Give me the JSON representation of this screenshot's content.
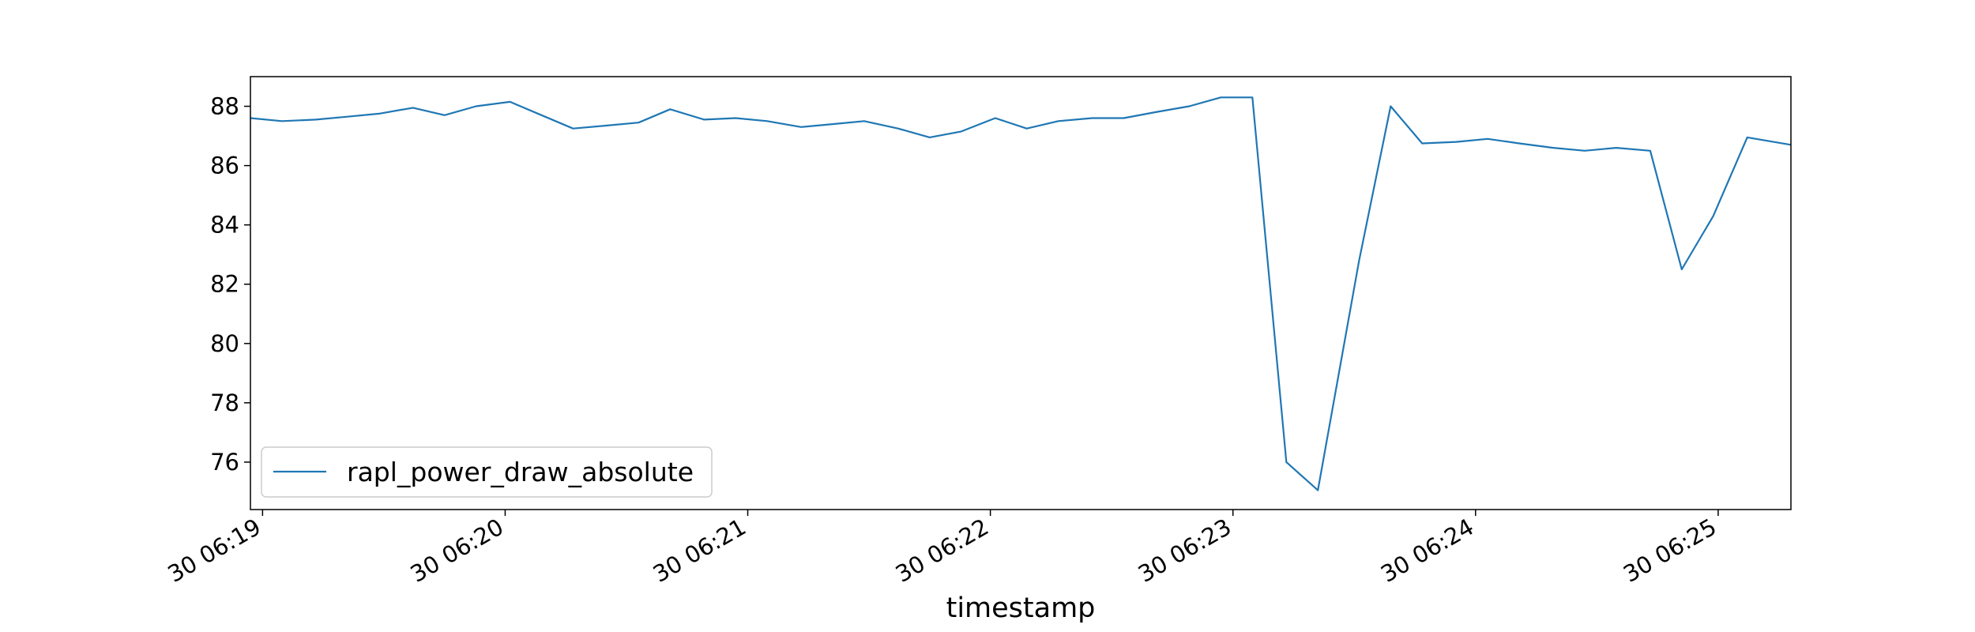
{
  "chart_data": {
    "type": "line",
    "title": "",
    "xlabel": "timestamp",
    "ylabel": "",
    "x_unit": "minutes after 30 06:19",
    "xlim": [
      -0.05,
      6.3
    ],
    "ylim": [
      74.4,
      89.0
    ],
    "xticks": [
      {
        "value": 0,
        "label": "30 06:19"
      },
      {
        "value": 1,
        "label": "30 06:20"
      },
      {
        "value": 2,
        "label": "30 06:21"
      },
      {
        "value": 3,
        "label": "30 06:22"
      },
      {
        "value": 4,
        "label": "30 06:23"
      },
      {
        "value": 5,
        "label": "30 06:24"
      },
      {
        "value": 6,
        "label": "30 06:25"
      }
    ],
    "yticks": [
      76,
      78,
      80,
      82,
      84,
      86,
      88
    ],
    "legend": {
      "position": "lower-left"
    },
    "series": [
      {
        "name": "rapl_power_draw_absolute",
        "color": "#1f77b4",
        "x": [
          -0.05,
          0.08,
          0.22,
          0.35,
          0.48,
          0.62,
          0.75,
          0.88,
          1.02,
          1.15,
          1.28,
          1.42,
          1.55,
          1.68,
          1.82,
          1.95,
          2.08,
          2.22,
          2.35,
          2.48,
          2.62,
          2.75,
          2.88,
          3.02,
          3.15,
          3.28,
          3.42,
          3.55,
          3.68,
          3.82,
          3.95,
          4.08,
          4.22,
          4.35,
          4.52,
          4.65,
          4.78,
          4.92,
          5.05,
          5.18,
          5.32,
          5.45,
          5.58,
          5.72,
          5.85,
          5.98,
          6.12,
          6.3
        ],
        "y": [
          87.6,
          87.5,
          87.55,
          87.65,
          87.75,
          87.95,
          87.7,
          88.0,
          88.15,
          87.7,
          87.25,
          87.35,
          87.45,
          87.9,
          87.55,
          87.6,
          87.5,
          87.3,
          87.4,
          87.5,
          87.25,
          86.95,
          87.15,
          87.6,
          87.25,
          87.5,
          87.6,
          87.6,
          87.8,
          88.0,
          88.3,
          88.3,
          76.0,
          75.05,
          82.8,
          88.0,
          86.75,
          86.8,
          86.9,
          86.75,
          86.6,
          86.5,
          86.6,
          86.5,
          82.5,
          84.3,
          86.95,
          86.7
        ]
      }
    ]
  }
}
